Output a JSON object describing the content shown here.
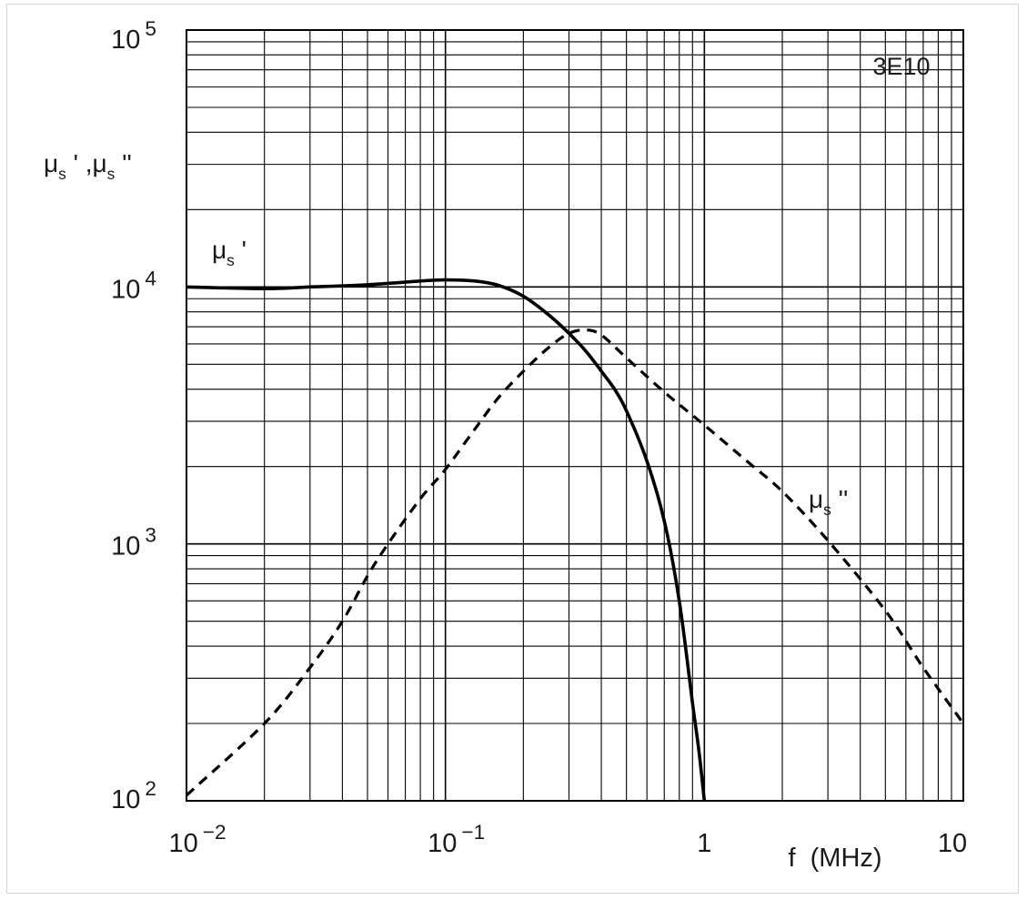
{
  "chart_data": {
    "type": "line",
    "x_scale": "log",
    "y_scale": "log",
    "xlim": [
      0.01,
      10
    ],
    "ylim": [
      100,
      100000
    ],
    "grid": true,
    "annotation": "3E10",
    "xlabel": "f  (MHz)",
    "ylabel": {
      "base": "μ",
      "sub": "s",
      "text": " ' ,μ",
      "sub2": "s",
      "tail": " ''"
    },
    "x_ticks": [
      {
        "value": 0.01,
        "base": "10",
        "exp": "−2"
      },
      {
        "value": 0.1,
        "base": "10",
        "exp": "−1"
      },
      {
        "value": 1,
        "base": "1",
        "exp": ""
      },
      {
        "value": 10,
        "base": "10",
        "exp": ""
      }
    ],
    "y_ticks": [
      {
        "value": 100000,
        "base": "10",
        "exp": "5"
      },
      {
        "value": 10000,
        "base": "10",
        "exp": "4"
      },
      {
        "value": 1000,
        "base": "10",
        "exp": "3"
      },
      {
        "value": 100,
        "base": "10",
        "exp": "2"
      }
    ],
    "series": [
      {
        "name": "μs '",
        "label_base": "μ",
        "label_sub": "s",
        "label_tail": " '",
        "style": "solid",
        "color": "#000000",
        "x": [
          0.01,
          0.02,
          0.03,
          0.05,
          0.08,
          0.1,
          0.13,
          0.16,
          0.2,
          0.25,
          0.3,
          0.35,
          0.4,
          0.45,
          0.5,
          0.6,
          0.7,
          0.8,
          0.9,
          0.95,
          1.0
        ],
        "y": [
          10000,
          9850,
          10000,
          10200,
          10550,
          10650,
          10550,
          10150,
          9200,
          7800,
          6600,
          5600,
          4700,
          4000,
          3300,
          2100,
          1230,
          600,
          240,
          160,
          100
        ]
      },
      {
        "name": "μs ''",
        "label_base": "μ",
        "label_sub": "s",
        "label_tail": " ''",
        "style": "dashed",
        "color": "#000000",
        "x": [
          0.01,
          0.02,
          0.03,
          0.04,
          0.05,
          0.06,
          0.08,
          0.1,
          0.13,
          0.16,
          0.2,
          0.25,
          0.3,
          0.35,
          0.4,
          0.5,
          0.7,
          1.0,
          1.5,
          2.0,
          3.0,
          5.0,
          7.0,
          10.0
        ],
        "y": [
          105,
          200,
          330,
          500,
          750,
          1000,
          1500,
          1950,
          2800,
          3700,
          4700,
          5800,
          6600,
          6800,
          6500,
          5300,
          3900,
          2900,
          2050,
          1600,
          1030,
          550,
          330,
          200
        ]
      }
    ]
  }
}
